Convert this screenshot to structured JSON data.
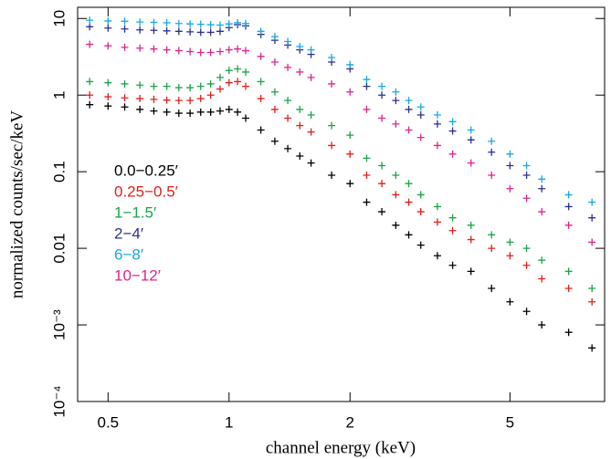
{
  "chart_data": {
    "type": "scatter",
    "xlabel": "channel energy (keV)",
    "ylabel": "normalized counts/sec/keV",
    "log_x": true,
    "log_y": true,
    "xlim": [
      0.42,
      8.6
    ],
    "ylim": [
      0.0001,
      14
    ],
    "xticks": [
      0.5,
      1,
      2,
      5
    ],
    "yticks": [
      {
        "value": 0.0001,
        "label": "10⁻⁴"
      },
      {
        "value": 0.001,
        "label": "10⁻³"
      },
      0.01,
      0.1,
      1,
      10
    ],
    "x": [
      0.45,
      0.5,
      0.55,
      0.6,
      0.65,
      0.7,
      0.75,
      0.8,
      0.85,
      0.9,
      0.95,
      1.0,
      1.05,
      1.1,
      1.2,
      1.3,
      1.4,
      1.5,
      1.6,
      1.8,
      2.0,
      2.2,
      2.4,
      2.6,
      2.8,
      3.0,
      3.3,
      3.6,
      4.0,
      4.5,
      5.0,
      5.5,
      6.0,
      7.0,
      8.0
    ],
    "series": [
      {
        "name": "0.0−0.25′",
        "color": "#000000",
        "values": [
          0.75,
          0.72,
          0.7,
          0.65,
          0.62,
          0.6,
          0.58,
          0.58,
          0.6,
          0.6,
          0.62,
          0.65,
          0.6,
          0.5,
          0.35,
          0.25,
          0.2,
          0.16,
          0.13,
          0.09,
          0.07,
          0.04,
          0.03,
          0.02,
          0.015,
          0.011,
          0.008,
          0.006,
          0.005,
          0.003,
          0.002,
          0.0015,
          0.001,
          0.0008,
          0.0005
        ]
      },
      {
        "name": "0.25−0.5′",
        "color": "#e0201b",
        "values": [
          1.0,
          0.95,
          0.92,
          0.9,
          0.88,
          0.86,
          0.85,
          0.85,
          0.9,
          1.0,
          1.2,
          1.45,
          1.5,
          1.3,
          0.9,
          0.65,
          0.5,
          0.4,
          0.33,
          0.22,
          0.17,
          0.09,
          0.07,
          0.05,
          0.04,
          0.03,
          0.022,
          0.017,
          0.013,
          0.01,
          0.008,
          0.006,
          0.004,
          0.003,
          0.002
        ]
      },
      {
        "name": "1−1.5′",
        "color": "#1aa34a",
        "values": [
          1.5,
          1.45,
          1.4,
          1.35,
          1.3,
          1.3,
          1.25,
          1.25,
          1.3,
          1.4,
          1.7,
          2.1,
          2.2,
          2.0,
          1.5,
          1.1,
          0.85,
          0.65,
          0.55,
          0.4,
          0.3,
          0.15,
          0.12,
          0.09,
          0.07,
          0.05,
          0.035,
          0.025,
          0.02,
          0.015,
          0.012,
          0.01,
          0.007,
          0.005,
          0.003
        ]
      },
      {
        "name": "2−4′",
        "color": "#2e2e8f",
        "values": [
          7.8,
          7.5,
          7.3,
          7.1,
          7.0,
          6.9,
          6.8,
          6.7,
          6.6,
          6.6,
          6.8,
          7.6,
          8.3,
          8.0,
          6.2,
          5.2,
          4.5,
          3.9,
          3.4,
          2.7,
          2.2,
          1.3,
          1.0,
          0.85,
          0.65,
          0.55,
          0.42,
          0.34,
          0.26,
          0.18,
          0.12,
          0.09,
          0.06,
          0.035,
          0.025
        ]
      },
      {
        "name": "6−8′",
        "color": "#18a8e0",
        "values": [
          9.5,
          9.3,
          9.2,
          9.0,
          8.9,
          8.8,
          8.6,
          8.5,
          8.4,
          8.3,
          8.2,
          8.5,
          8.8,
          8.6,
          6.8,
          5.8,
          5.0,
          4.3,
          3.9,
          3.1,
          2.5,
          1.6,
          1.3,
          1.1,
          0.85,
          0.7,
          0.55,
          0.45,
          0.35,
          0.25,
          0.17,
          0.12,
          0.08,
          0.05,
          0.04
        ]
      },
      {
        "name": "10−12′",
        "color": "#e0238c",
        "values": [
          4.6,
          4.4,
          4.2,
          4.1,
          4.0,
          3.9,
          3.8,
          3.7,
          3.6,
          3.6,
          3.7,
          3.9,
          4.0,
          3.8,
          3.2,
          2.7,
          2.3,
          2.0,
          1.7,
          1.4,
          1.1,
          0.65,
          0.5,
          0.42,
          0.35,
          0.28,
          0.22,
          0.17,
          0.13,
          0.09,
          0.06,
          0.045,
          0.03,
          0.02,
          0.012
        ]
      }
    ]
  }
}
